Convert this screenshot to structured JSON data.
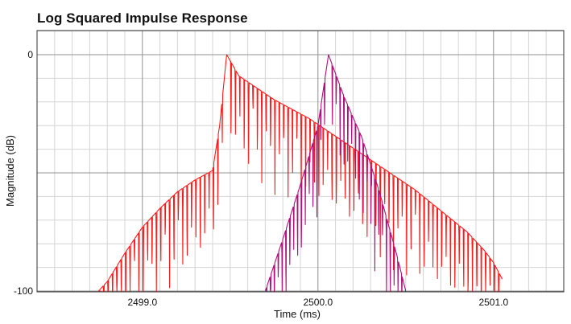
{
  "chart_data": {
    "type": "line",
    "title": "Log Squared Impulse Response",
    "xlabel": "Time (ms)",
    "ylabel": "Magnitude (dB)",
    "xlim": [
      2498.4,
      2501.4
    ],
    "ylim": [
      -100,
      0
    ],
    "x_ticks": [
      {
        "value": 2499.0,
        "label": "2499.0"
      },
      {
        "value": 2500.0,
        "label": "2500.0"
      },
      {
        "value": 2501.0,
        "label": "2501.0"
      }
    ],
    "y_ticks": [
      {
        "value": 0,
        "label": "0"
      },
      {
        "value": -100,
        "label": "-100"
      }
    ],
    "grid": true,
    "legend": "none",
    "colors": {
      "series_a": "#ff1a1a",
      "series_b": "#b0107a",
      "grid_major": "#909090",
      "grid_minor": "#d4d4d4",
      "axis": "#333333"
    },
    "series": [
      {
        "color": "#ff1a1a",
        "peak": {
          "x": 2499.48,
          "y": 0
        },
        "x": [
          2498.75,
          2498.8,
          2498.9,
          2499.0,
          2499.1,
          2499.2,
          2499.3,
          2499.4,
          2499.44,
          2499.48,
          2499.55,
          2499.65,
          2499.75,
          2499.85,
          2499.95,
          2500.05,
          2500.15,
          2500.25,
          2500.35,
          2500.45,
          2500.55,
          2500.65,
          2500.75,
          2500.85,
          2500.95,
          2501.0,
          2501.05
        ],
        "y": [
          -100,
          -96,
          -84,
          -73,
          -65,
          -58,
          -53,
          -49,
          -30,
          0,
          -9,
          -14,
          -19,
          -23,
          -27,
          -32,
          -37,
          -42,
          -47,
          -52,
          -57,
          -63,
          -69,
          -75,
          -83,
          -88,
          -95
        ],
        "notch_spacing_ms": 0.025
      },
      {
        "color": "#b0107a",
        "peak": {
          "x": 2500.06,
          "y": 0
        },
        "x": [
          2499.7,
          2499.8,
          2499.9,
          2500.0,
          2500.06,
          2500.15,
          2500.25,
          2500.35,
          2500.45,
          2500.5
        ],
        "y": [
          -100,
          -78,
          -55,
          -30,
          0,
          -18,
          -35,
          -58,
          -85,
          -100
        ],
        "notch_spacing_ms": 0.022
      }
    ]
  }
}
